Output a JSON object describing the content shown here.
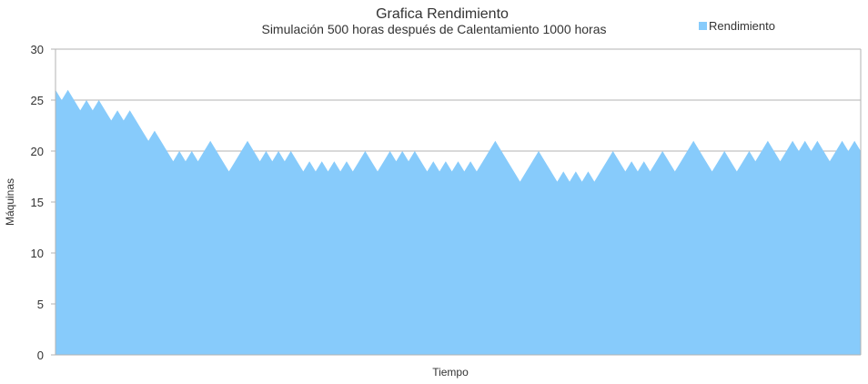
{
  "chart_data": {
    "type": "area",
    "title": "Grafica Rendimiento",
    "subtitle": "Simulación 500 horas después de Calentamiento 1000 horas",
    "xlabel": "Tiempo",
    "ylabel": "Máquinas",
    "ylim": [
      0,
      30
    ],
    "yticks": [
      "0",
      "5",
      "10",
      "15",
      "20",
      "25",
      "30"
    ],
    "grid": true,
    "legend_position": "top-right",
    "series": [
      {
        "name": "Rendimiento",
        "color": "#87cbfb",
        "values": [
          26,
          25,
          26,
          25,
          24,
          25,
          24,
          25,
          24,
          23,
          24,
          23,
          24,
          23,
          22,
          21,
          22,
          21,
          20,
          19,
          20,
          19,
          20,
          19,
          20,
          21,
          20,
          19,
          18,
          19,
          20,
          21,
          20,
          19,
          20,
          19,
          20,
          19,
          20,
          19,
          18,
          19,
          18,
          19,
          18,
          19,
          18,
          19,
          18,
          19,
          20,
          19,
          18,
          19,
          20,
          19,
          20,
          19,
          20,
          19,
          18,
          19,
          18,
          19,
          18,
          19,
          18,
          19,
          18,
          19,
          20,
          21,
          20,
          19,
          18,
          17,
          18,
          19,
          20,
          19,
          18,
          17,
          18,
          17,
          18,
          17,
          18,
          17,
          18,
          19,
          20,
          19,
          18,
          19,
          18,
          19,
          18,
          19,
          20,
          19,
          18,
          19,
          20,
          21,
          20,
          19,
          18,
          19,
          20,
          19,
          18,
          19,
          20,
          19,
          20,
          21,
          20,
          19,
          20,
          21,
          20,
          21,
          20,
          21,
          20,
          19,
          20,
          21,
          20,
          21,
          20
        ]
      }
    ]
  }
}
